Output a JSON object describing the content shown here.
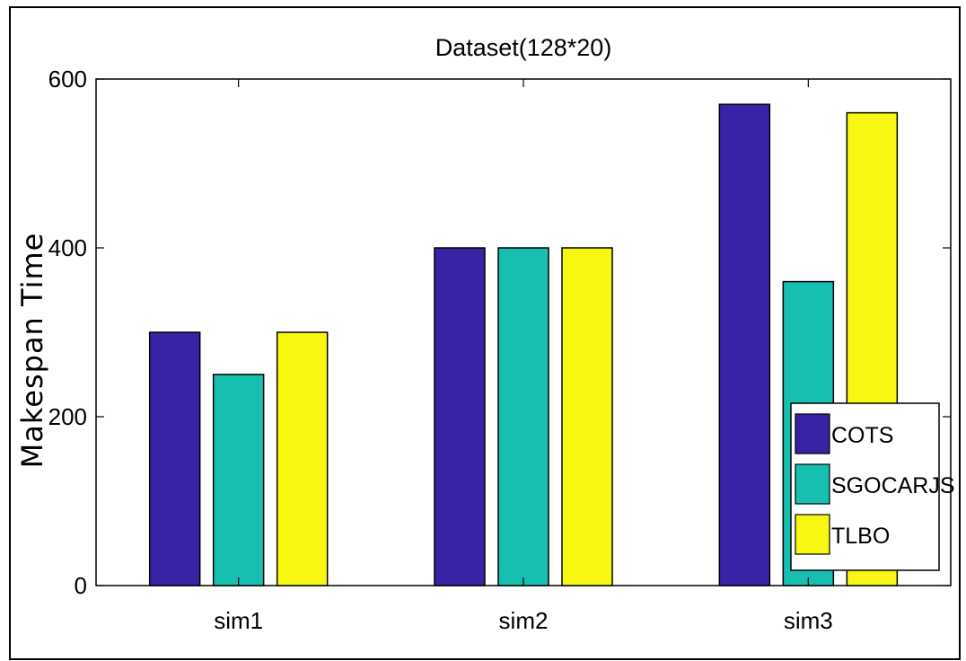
{
  "chart_data": {
    "type": "bar",
    "title": "Dataset(128*20)",
    "xlabel": "",
    "ylabel": "Makespan Time",
    "categories": [
      "sim1",
      "sim2",
      "sim3"
    ],
    "series": [
      {
        "name": "COTS",
        "color": "#3A22A5",
        "values": [
          300,
          400,
          570
        ]
      },
      {
        "name": "SGOCARJS",
        "color": "#17BFB0",
        "values": [
          250,
          400,
          360
        ]
      },
      {
        "name": "TLBO",
        "color": "#F7F711",
        "values": [
          300,
          400,
          560
        ]
      }
    ],
    "ylim": [
      0,
      600
    ],
    "yticks": [
      0,
      200,
      400,
      600
    ],
    "grid": false,
    "legend_position": "bottom-right"
  }
}
